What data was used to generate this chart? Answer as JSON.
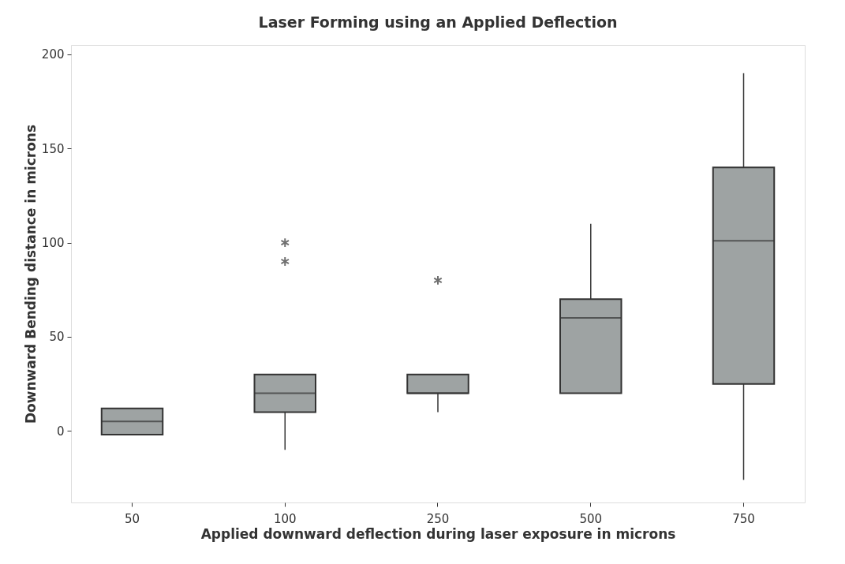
{
  "chart_data": {
    "type": "box",
    "title": "Laser Forming using an Applied Deflection",
    "xlabel": "Applied downward deflection during laser exposure in microns",
    "ylabel": "Downward Bending distance in microns",
    "categories": [
      "50",
      "100",
      "250",
      "500",
      "750"
    ],
    "color": "#9ea3a3",
    "boxes": [
      {
        "low": -2,
        "q1": -2,
        "median": 5,
        "q3": 12,
        "high": 12
      },
      {
        "low": -10,
        "q1": 10,
        "median": 20,
        "q3": 30,
        "high": 30,
        "outliers": [
          90,
          100
        ]
      },
      {
        "low": 10,
        "q1": 20,
        "median": 20,
        "q3": 30,
        "high": 30,
        "outliers": [
          80
        ]
      },
      {
        "low": 20,
        "q1": 20,
        "median": 60,
        "q3": 70,
        "high": 110
      },
      {
        "low": -26,
        "q1": 25,
        "median": 101,
        "q3": 140,
        "high": 190
      }
    ],
    "ylim": [
      -38,
      205
    ],
    "yticks": [
      0,
      50,
      100,
      150,
      200
    ],
    "grid": false
  }
}
